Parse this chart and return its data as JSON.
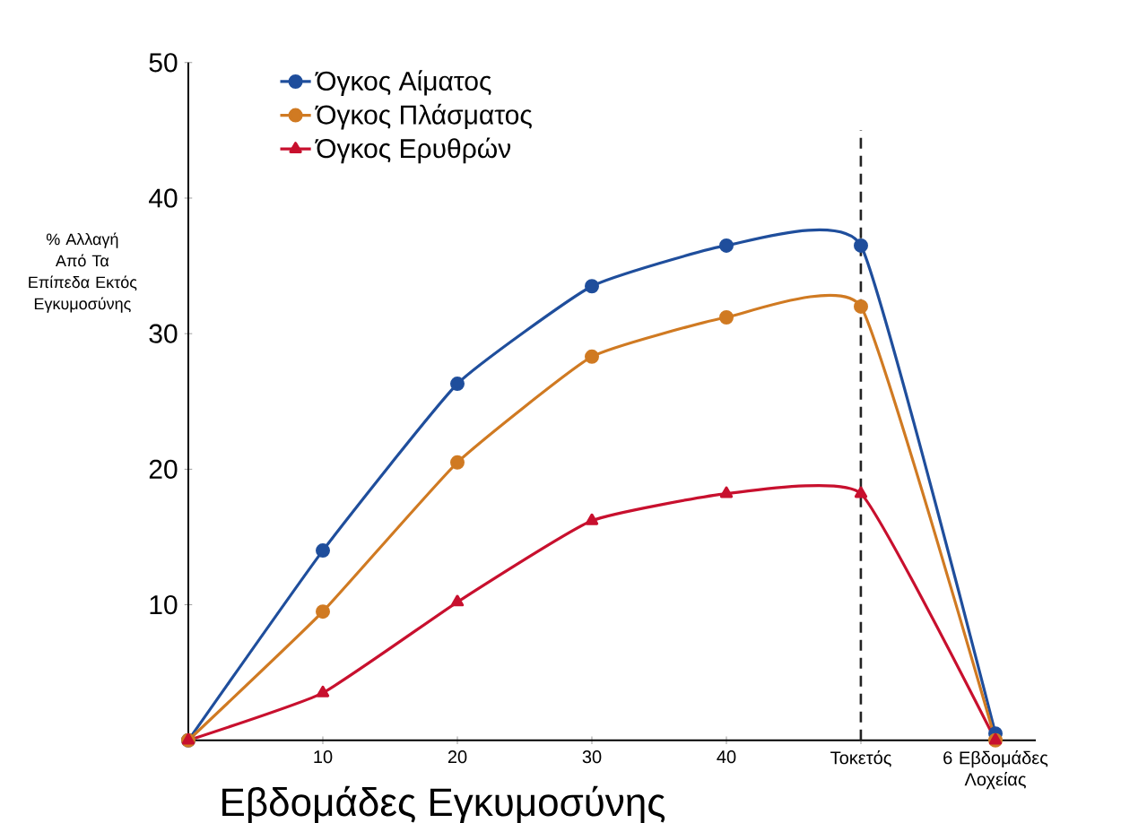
{
  "chart_data": {
    "type": "line",
    "xlabel": "Εβδομάδες Εγκυμοσύνης",
    "ylabel": "% Αλλαγή Από Τα Επίπεδα Εκτός Εγκυμοσύνης",
    "categories": [
      null,
      "10",
      "20",
      "30",
      "40",
      "Τοκετός",
      "6 Εβδομάδες Λοχείας"
    ],
    "series": [
      {
        "name": "Όγκος Αίματος",
        "color": "#1f4e9c",
        "marker": "circle",
        "values": [
          0,
          14,
          26.3,
          33.5,
          36.5,
          36.5,
          0.5
        ]
      },
      {
        "name": "Όγκος Πλάσματος",
        "color": "#d07a22",
        "marker": "circle",
        "values": [
          0,
          9.5,
          20.5,
          28.3,
          31.2,
          32,
          0
        ]
      },
      {
        "name": "Όγκος Ερυθρών",
        "color": "#c8102e",
        "marker": "triangle",
        "values": [
          0,
          3.5,
          10.2,
          16.2,
          18.2,
          18.2,
          0
        ]
      }
    ],
    "ylim": [
      0,
      50
    ],
    "yticks": [
      10,
      20,
      30,
      40,
      50
    ],
    "ref_lines": [
      {
        "axis": "x",
        "value": "Τοκετός",
        "color": "#222222",
        "line_style": "dashed"
      }
    ],
    "legend": "top left",
    "grid": false
  }
}
